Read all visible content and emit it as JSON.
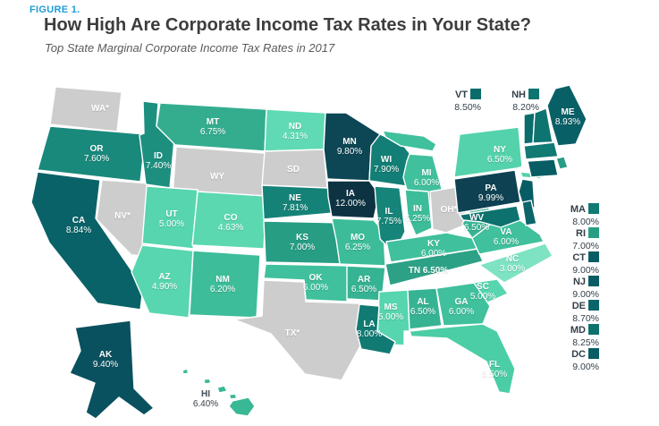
{
  "figure": {
    "eyebrow": "FIGURE 1.",
    "title": "How High Are Corporate Income Tax Rates in Your State?",
    "subtitle": "Top State Marginal Corporate Income Tax Rates in 2017"
  },
  "palette": {
    "eyebrow_blue": "#1e9cd7",
    "title_text": "#3d3d3d",
    "subtitle_text": "#5a5a5a",
    "no_tax_gray": "#cdcdcd",
    "state_border": "#ffffff",
    "map_label": "#ffffff",
    "offmap_label": "#33404a"
  },
  "states": [
    {
      "abbr": "WA",
      "label": "WA*",
      "value": null,
      "fill": "#cdcdcd"
    },
    {
      "abbr": "OR",
      "label": "OR",
      "value": "7.60%",
      "fill": "#19897c"
    },
    {
      "abbr": "CA",
      "label": "CA",
      "value": "8.84%",
      "fill": "#096267"
    },
    {
      "abbr": "NV",
      "label": "NV*",
      "value": null,
      "fill": "#cdcdcd"
    },
    {
      "abbr": "ID",
      "label": "ID",
      "value": "7.40%",
      "fill": "#1d8f7f"
    },
    {
      "abbr": "MT",
      "label": "MT",
      "value": "6.75%",
      "fill": "#34ad8f"
    },
    {
      "abbr": "WY",
      "label": "WY",
      "value": null,
      "fill": "#cdcdcd"
    },
    {
      "abbr": "UT",
      "label": "UT",
      "value": "5.00%",
      "fill": "#56d5ae"
    },
    {
      "abbr": "CO",
      "label": "CO",
      "value": "4.63%",
      "fill": "#5cd8b1"
    },
    {
      "abbr": "AZ",
      "label": "AZ",
      "value": "4.90%",
      "fill": "#58d6af"
    },
    {
      "abbr": "NM",
      "label": "NM",
      "value": "6.20%",
      "fill": "#3dbd9a"
    },
    {
      "abbr": "ND",
      "label": "ND",
      "value": "4.31%",
      "fill": "#60dab4"
    },
    {
      "abbr": "SD",
      "label": "SD",
      "value": null,
      "fill": "#cdcdcd"
    },
    {
      "abbr": "NE",
      "label": "NE",
      "value": "7.81%",
      "fill": "#158277"
    },
    {
      "abbr": "KS",
      "label": "KS",
      "value": "7.00%",
      "fill": "#279d84"
    },
    {
      "abbr": "OK",
      "label": "OK",
      "value": "6.00%",
      "fill": "#40c09d"
    },
    {
      "abbr": "TX",
      "label": "TX*",
      "value": null,
      "fill": "#cdcdcd"
    },
    {
      "abbr": "MN",
      "label": "MN",
      "value": "9.80%",
      "fill": "#0d4655"
    },
    {
      "abbr": "IA",
      "label": "IA",
      "value": "12.00%",
      "fill": "#0d3343"
    },
    {
      "abbr": "MO",
      "label": "MO",
      "value": "6.25%",
      "fill": "#3cbc99"
    },
    {
      "abbr": "WI",
      "label": "WI",
      "value": "7.90%",
      "fill": "#137e75"
    },
    {
      "abbr": "IL",
      "label": "IL",
      "value": "7.75%",
      "fill": "#168478"
    },
    {
      "abbr": "MI",
      "label": "MI",
      "value": "6.00%",
      "fill": "#40c09d"
    },
    {
      "abbr": "IN",
      "label": "IN",
      "value": "6.25%",
      "fill": "#3cbc99"
    },
    {
      "abbr": "OH",
      "label": "OH*",
      "value": null,
      "fill": "#cdcdcd"
    },
    {
      "abbr": "WV",
      "label": "WV",
      "value": "6.50%",
      "fill": "#36b393"
    },
    {
      "abbr": "KY",
      "label": "KY",
      "value": "6.00%",
      "fill": "#40c09d"
    },
    {
      "abbr": "TN",
      "label": "TN",
      "value": "6.50%",
      "fill": "#2da186",
      "inline": true
    },
    {
      "abbr": "VA",
      "label": "VA",
      "value": "6.00%",
      "fill": "#40c09d"
    },
    {
      "abbr": "NC",
      "label": "NC",
      "value": "3.00%",
      "fill": "#7de3c3"
    },
    {
      "abbr": "SC",
      "label": "SC",
      "value": "5.00%",
      "fill": "#56d5ae"
    },
    {
      "abbr": "AR",
      "label": "AR",
      "value": "6.50%",
      "fill": "#36b393"
    },
    {
      "abbr": "MS",
      "label": "MS",
      "value": "5.00%",
      "fill": "#56d5ae"
    },
    {
      "abbr": "AL",
      "label": "AL",
      "value": "6.50%",
      "fill": "#36b393"
    },
    {
      "abbr": "GA",
      "label": "GA",
      "value": "6.00%",
      "fill": "#40c09d"
    },
    {
      "abbr": "FL",
      "label": "FL",
      "value": "5.50%",
      "fill": "#4bcda5"
    },
    {
      "abbr": "LA",
      "label": "LA",
      "value": "8.00%",
      "fill": "#107a73"
    },
    {
      "abbr": "PA",
      "label": "PA",
      "value": "9.99%",
      "fill": "#0e4252"
    },
    {
      "abbr": "NY",
      "label": "NY",
      "value": "6.50%",
      "fill": "#54d2ab"
    },
    {
      "abbr": "ME",
      "label": "ME",
      "value": "8.93%",
      "fill": "#095f66"
    },
    {
      "abbr": "VT",
      "label": "VT",
      "value": "8.50%",
      "fill": "#0b6c6c",
      "no_map_label": true
    },
    {
      "abbr": "NH",
      "label": "NH",
      "value": "8.20%",
      "fill": "#0e746f",
      "no_map_label": true
    },
    {
      "abbr": "MA",
      "label": "MA",
      "value": "8.00%",
      "fill": "#107a73",
      "no_map_label": true
    },
    {
      "abbr": "RI",
      "label": "RI",
      "value": "7.00%",
      "fill": "#279d84",
      "no_map_label": true
    },
    {
      "abbr": "CT",
      "label": "CT",
      "value": "9.00%",
      "fill": "#085d64",
      "no_map_label": true
    },
    {
      "abbr": "NJ",
      "label": "NJ",
      "value": "9.00%",
      "fill": "#085d64",
      "no_map_label": true
    },
    {
      "abbr": "DE",
      "label": "DE",
      "value": "8.70%",
      "fill": "#0a6669",
      "no_map_label": true
    },
    {
      "abbr": "MD",
      "label": "MD",
      "value": "8.25%",
      "fill": "#0d726e",
      "no_map_label": true
    },
    {
      "abbr": "AK",
      "label": "AK",
      "value": "9.40%",
      "fill": "#0a5160"
    },
    {
      "abbr": "HI",
      "label": "HI",
      "value": "6.40%",
      "fill": "#39b896",
      "label_color": "#4a545a"
    }
  ],
  "callouts": {
    "top": [
      {
        "abbr": "VT",
        "value": "8.50%",
        "fill": "#0b6c6c"
      },
      {
        "abbr": "NH",
        "value": "8.20%",
        "fill": "#0e746f"
      }
    ],
    "right": [
      {
        "abbr": "MA",
        "value": "8.00%",
        "fill": "#107a73"
      },
      {
        "abbr": "RI",
        "value": "7.00%",
        "fill": "#279d84"
      },
      {
        "abbr": "CT",
        "value": "9.00%",
        "fill": "#085d64"
      },
      {
        "abbr": "NJ",
        "value": "9.00%",
        "fill": "#085d64"
      },
      {
        "abbr": "DE",
        "value": "8.70%",
        "fill": "#0a6669"
      },
      {
        "abbr": "MD",
        "value": "8.25%",
        "fill": "#0d726e"
      },
      {
        "abbr": "DC",
        "value": "9.00%",
        "fill": "#085d64"
      }
    ]
  }
}
